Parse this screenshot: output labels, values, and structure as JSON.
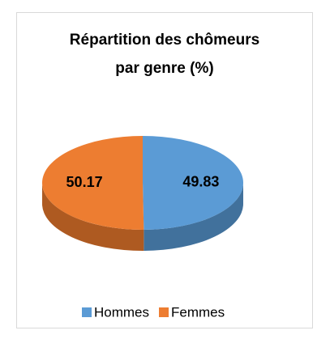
{
  "chart_data": {
    "type": "pie",
    "title": [
      "Répartition des chômeurs",
      "par genre (%)"
    ],
    "categories": [
      "Hommes",
      "Femmes"
    ],
    "values": [
      49.83,
      50.17
    ],
    "colors": [
      "#5b9bd5",
      "#ed7d31"
    ],
    "side_colors": [
      "#41719c",
      "#ae5a21"
    ],
    "legend": "bottom",
    "three_d": true
  }
}
